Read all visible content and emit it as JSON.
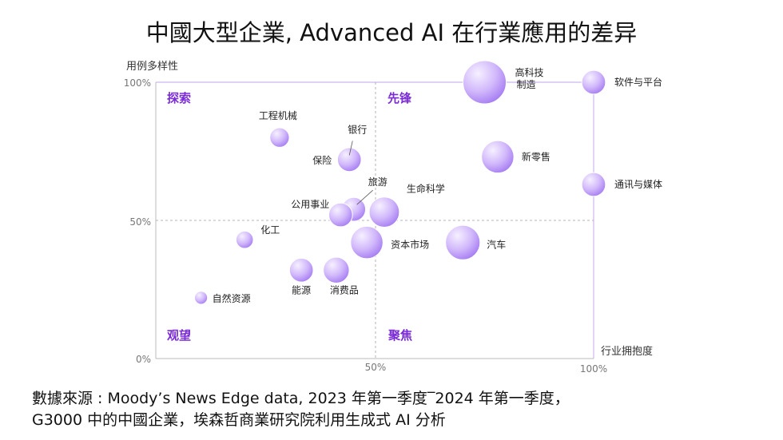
{
  "title": "中國大型企業, Advanced AI 在行業應用的差异",
  "chart_data": {
    "type": "scatter",
    "title": "中國大型企業, Advanced AI 在行業應用的差异",
    "xlabel": "行业拥抱度",
    "ylabel": "用例多样性",
    "x_ticks": [
      "50%",
      "100%"
    ],
    "y_ticks": [
      "0%",
      "50%",
      "100%"
    ],
    "xlim": [
      0,
      100
    ],
    "ylim": [
      0,
      100
    ],
    "quadrants": [
      "探索",
      "先锋",
      "观望",
      "聚焦"
    ],
    "points": [
      {
        "label": "高科技\n制造",
        "x": 75,
        "y": 100,
        "size": 1.0
      },
      {
        "label": "软件与平台",
        "x": 100,
        "y": 100,
        "size": 0.55
      },
      {
        "label": "工程机械",
        "x": 28,
        "y": 80,
        "size": 0.45
      },
      {
        "label": "银行",
        "x": 44,
        "y": 73,
        "size": 0.45
      },
      {
        "label": "保险",
        "x": 44,
        "y": 72,
        "size": 0.55
      },
      {
        "label": "新零售",
        "x": 78,
        "y": 73,
        "size": 0.75
      },
      {
        "label": "旅游",
        "x": 45,
        "y": 54,
        "size": 0.55
      },
      {
        "label": "公用事业",
        "x": 42,
        "y": 52,
        "size": 0.55
      },
      {
        "label": "生命科学",
        "x": 52,
        "y": 53,
        "size": 0.7
      },
      {
        "label": "通讯与媒体",
        "x": 100,
        "y": 63,
        "size": 0.55
      },
      {
        "label": "化工",
        "x": 20,
        "y": 43,
        "size": 0.4
      },
      {
        "label": "资本市场",
        "x": 48,
        "y": 42,
        "size": 0.75
      },
      {
        "label": "汽车",
        "x": 70,
        "y": 42,
        "size": 0.8
      },
      {
        "label": "能源",
        "x": 33,
        "y": 32,
        "size": 0.55
      },
      {
        "label": "消费品",
        "x": 41,
        "y": 32,
        "size": 0.6
      },
      {
        "label": "自然资源",
        "x": 10,
        "y": 22,
        "size": 0.3
      }
    ],
    "colors": {
      "bubble_light": "#f1e8ff",
      "bubble_dark": "#a57cf2",
      "quadrant_label": "#7a2bd6",
      "frame": "#cdb8f0",
      "axis_text": "#777777"
    }
  },
  "source": {
    "line1": "數據來源 : Moody’s News Edge data, 2023 年第一季度‾2024 年第一季度，",
    "line2": "G3000 中的中國企業，埃森哲商業研究院利用生成式 AI 分析"
  }
}
